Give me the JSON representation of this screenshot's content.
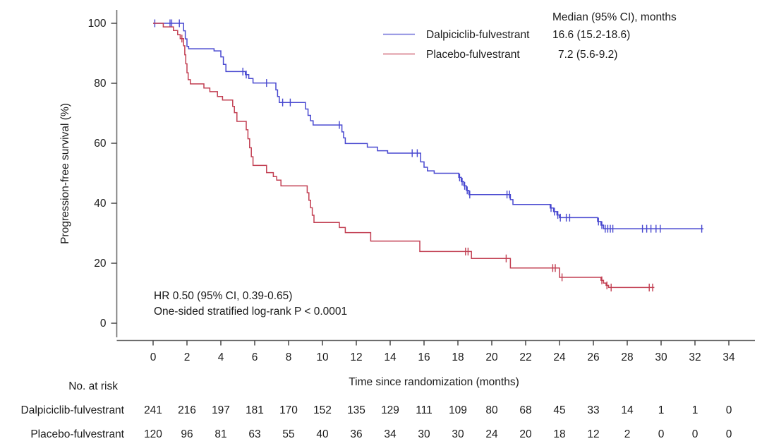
{
  "figure": {
    "background": "#ffffff"
  },
  "legend": {
    "header": "Median (95% CI), months",
    "entries": [
      {
        "label": "Dalpiciclib-fulvestrant",
        "median": "16.6 (15.2-18.6)",
        "color": "#4848d0"
      },
      {
        "label": "Placebo-fulvestrant",
        "median": "7.2 (5.6-9.2)",
        "color": "#c23f52"
      }
    ]
  },
  "annotation": {
    "line1": "HR 0.50 (95% CI, 0.39-0.65)",
    "line2": "One-sided stratified log-rank P < 0.0001"
  },
  "chart_data": {
    "type": "line",
    "subtype": "kaplan-meier-step",
    "title": "",
    "xlabel": "Time since randomization (months)",
    "ylabel": "Progression-free survival (%)",
    "xlim": [
      0,
      34
    ],
    "ylim": [
      0,
      100
    ],
    "xticks": [
      0,
      2,
      4,
      6,
      8,
      10,
      12,
      14,
      16,
      18,
      20,
      22,
      24,
      26,
      28,
      30,
      32,
      34
    ],
    "yticks": [
      0,
      20,
      40,
      60,
      80,
      100
    ],
    "grid": false,
    "legend_position": "top-right-inside",
    "series": [
      {
        "name": "Dalpiciclib-fulvestrant",
        "color": "#4848d0",
        "start": [
          0,
          100
        ],
        "end_time": 32.5,
        "points": [
          [
            1.8,
            97.5
          ],
          [
            1.9,
            94.8
          ],
          [
            2.0,
            92.3
          ],
          [
            2.1,
            91.5
          ],
          [
            3.6,
            90.8
          ],
          [
            4.0,
            88.8
          ],
          [
            4.15,
            86.3
          ],
          [
            4.3,
            83.9
          ],
          [
            5.45,
            82.9
          ],
          [
            5.65,
            81.6
          ],
          [
            5.9,
            80.1
          ],
          [
            7.25,
            77.8
          ],
          [
            7.35,
            75.6
          ],
          [
            7.45,
            73.6
          ],
          [
            9.0,
            71.4
          ],
          [
            9.15,
            69.3
          ],
          [
            9.3,
            67.5
          ],
          [
            9.45,
            66.1
          ],
          [
            11.15,
            63.8
          ],
          [
            11.25,
            61.8
          ],
          [
            11.35,
            59.9
          ],
          [
            12.65,
            58.7
          ],
          [
            13.25,
            57.5
          ],
          [
            13.85,
            56.7
          ],
          [
            15.8,
            53.8
          ],
          [
            16.0,
            52.0
          ],
          [
            16.2,
            50.8
          ],
          [
            16.6,
            50.0
          ],
          [
            18.05,
            48.6
          ],
          [
            18.2,
            47.2
          ],
          [
            18.35,
            45.8
          ],
          [
            18.5,
            44.3
          ],
          [
            18.65,
            42.9
          ],
          [
            21.1,
            41.2
          ],
          [
            21.25,
            39.6
          ],
          [
            23.45,
            38.4
          ],
          [
            23.65,
            37.2
          ],
          [
            23.85,
            36.1
          ],
          [
            24.0,
            35.2
          ],
          [
            26.25,
            33.9
          ],
          [
            26.45,
            32.7
          ],
          [
            26.6,
            31.5
          ]
        ],
        "censor_times": [
          0.1,
          1.0,
          1.1,
          1.55,
          5.3,
          5.5,
          6.7,
          7.65,
          8.1,
          11.0,
          15.3,
          15.6,
          18.1,
          18.25,
          18.4,
          18.55,
          18.7,
          20.9,
          21.05,
          23.5,
          23.7,
          23.9,
          24.05,
          24.4,
          24.6,
          26.3,
          26.5,
          26.7,
          26.85,
          27.0,
          27.15,
          28.9,
          29.15,
          29.4,
          29.7,
          29.95,
          32.4
        ]
      },
      {
        "name": "Placebo-fulvestrant",
        "color": "#c23f52",
        "start": [
          0,
          100
        ],
        "end_time": 29.6,
        "points": [
          [
            0.6,
            98.8
          ],
          [
            1.2,
            97.6
          ],
          [
            1.45,
            96.2
          ],
          [
            1.6,
            94.9
          ],
          [
            1.8,
            92.5
          ],
          [
            1.87,
            89.5
          ],
          [
            1.93,
            86.5
          ],
          [
            2.0,
            83.5
          ],
          [
            2.07,
            81.2
          ],
          [
            2.2,
            79.8
          ],
          [
            3.0,
            78.4
          ],
          [
            3.35,
            77.2
          ],
          [
            3.8,
            75.6
          ],
          [
            4.1,
            74.4
          ],
          [
            4.7,
            72.3
          ],
          [
            4.8,
            70.2
          ],
          [
            4.95,
            67.3
          ],
          [
            5.5,
            64.5
          ],
          [
            5.6,
            61.5
          ],
          [
            5.7,
            58.5
          ],
          [
            5.8,
            55.5
          ],
          [
            5.9,
            52.6
          ],
          [
            6.7,
            50.2
          ],
          [
            7.1,
            48.9
          ],
          [
            7.3,
            47.7
          ],
          [
            7.55,
            45.8
          ],
          [
            9.1,
            43.5
          ],
          [
            9.2,
            41.0
          ],
          [
            9.3,
            38.5
          ],
          [
            9.4,
            36.0
          ],
          [
            9.5,
            33.6
          ],
          [
            11.0,
            31.9
          ],
          [
            11.35,
            30.2
          ],
          [
            12.85,
            27.4
          ],
          [
            15.75,
            23.9
          ],
          [
            18.8,
            21.6
          ],
          [
            21.1,
            18.4
          ],
          [
            24.0,
            15.3
          ],
          [
            26.45,
            14.3
          ],
          [
            26.6,
            13.4
          ],
          [
            26.75,
            12.6
          ],
          [
            26.9,
            11.9
          ]
        ],
        "censor_times": [
          1.7,
          18.45,
          18.6,
          20.85,
          23.6,
          23.75,
          24.15,
          26.5,
          26.8,
          27.05,
          29.3,
          29.5
        ]
      }
    ]
  },
  "risk_table": {
    "label": "No. at risk",
    "times": [
      0,
      2,
      4,
      6,
      8,
      10,
      12,
      14,
      16,
      18,
      20,
      22,
      24,
      26,
      28,
      30,
      32,
      34
    ],
    "rows": [
      {
        "name": "Dalpiciclib-fulvestrant",
        "counts": [
          241,
          216,
          197,
          181,
          170,
          152,
          135,
          129,
          111,
          109,
          80,
          68,
          45,
          33,
          14,
          1,
          1,
          0
        ]
      },
      {
        "name": "Placebo-fulvestrant",
        "counts": [
          120,
          96,
          81,
          63,
          55,
          40,
          36,
          34,
          30,
          30,
          24,
          20,
          18,
          12,
          2,
          0,
          0,
          0
        ]
      }
    ]
  }
}
